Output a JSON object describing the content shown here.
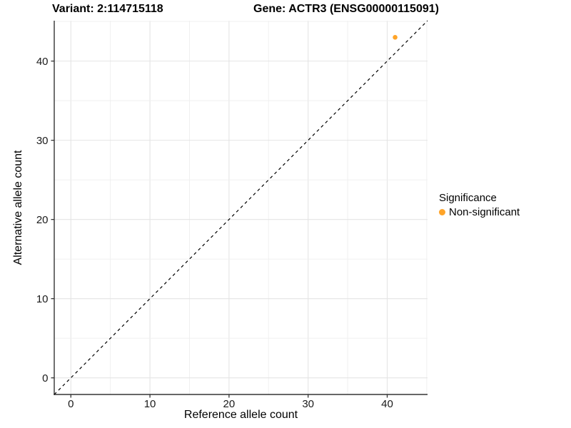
{
  "header": {
    "left_title": "Variant: 2:114715118",
    "right_title": "Gene: ACTR3 (ENSG00000115091)"
  },
  "chart_data": {
    "type": "scatter",
    "title_left": "Variant: 2:114715118",
    "title_right": "Gene: ACTR3 (ENSG00000115091)",
    "xlabel": "Reference allele count",
    "ylabel": "Alternative allele count",
    "xlim": [
      -2.1,
      45.1
    ],
    "ylim": [
      -2.1,
      45.1
    ],
    "x_ticks": [
      0,
      10,
      20,
      30,
      40
    ],
    "y_ticks": [
      0,
      10,
      20,
      30,
      40
    ],
    "grid": true,
    "grid_step": 5,
    "legend_position": "right",
    "series": [
      {
        "name": "Non-significant",
        "color": "#FFA428",
        "points": [
          {
            "x": 41,
            "y": 43
          }
        ]
      }
    ],
    "reference_line": {
      "kind": "identity",
      "slope": 1,
      "intercept": 0,
      "style": "dashed",
      "color": "#000000"
    }
  },
  "legend": {
    "title": "Significance",
    "items": [
      {
        "label": "Non-significant",
        "color": "#FFA428"
      }
    ]
  },
  "colors": {
    "axis_line": "#333333",
    "tick": "#333333",
    "tick_text": "#1a1a1a",
    "grid_major": "#e4e4e4",
    "grid_minor": "#efefef",
    "background": "#ffffff"
  }
}
